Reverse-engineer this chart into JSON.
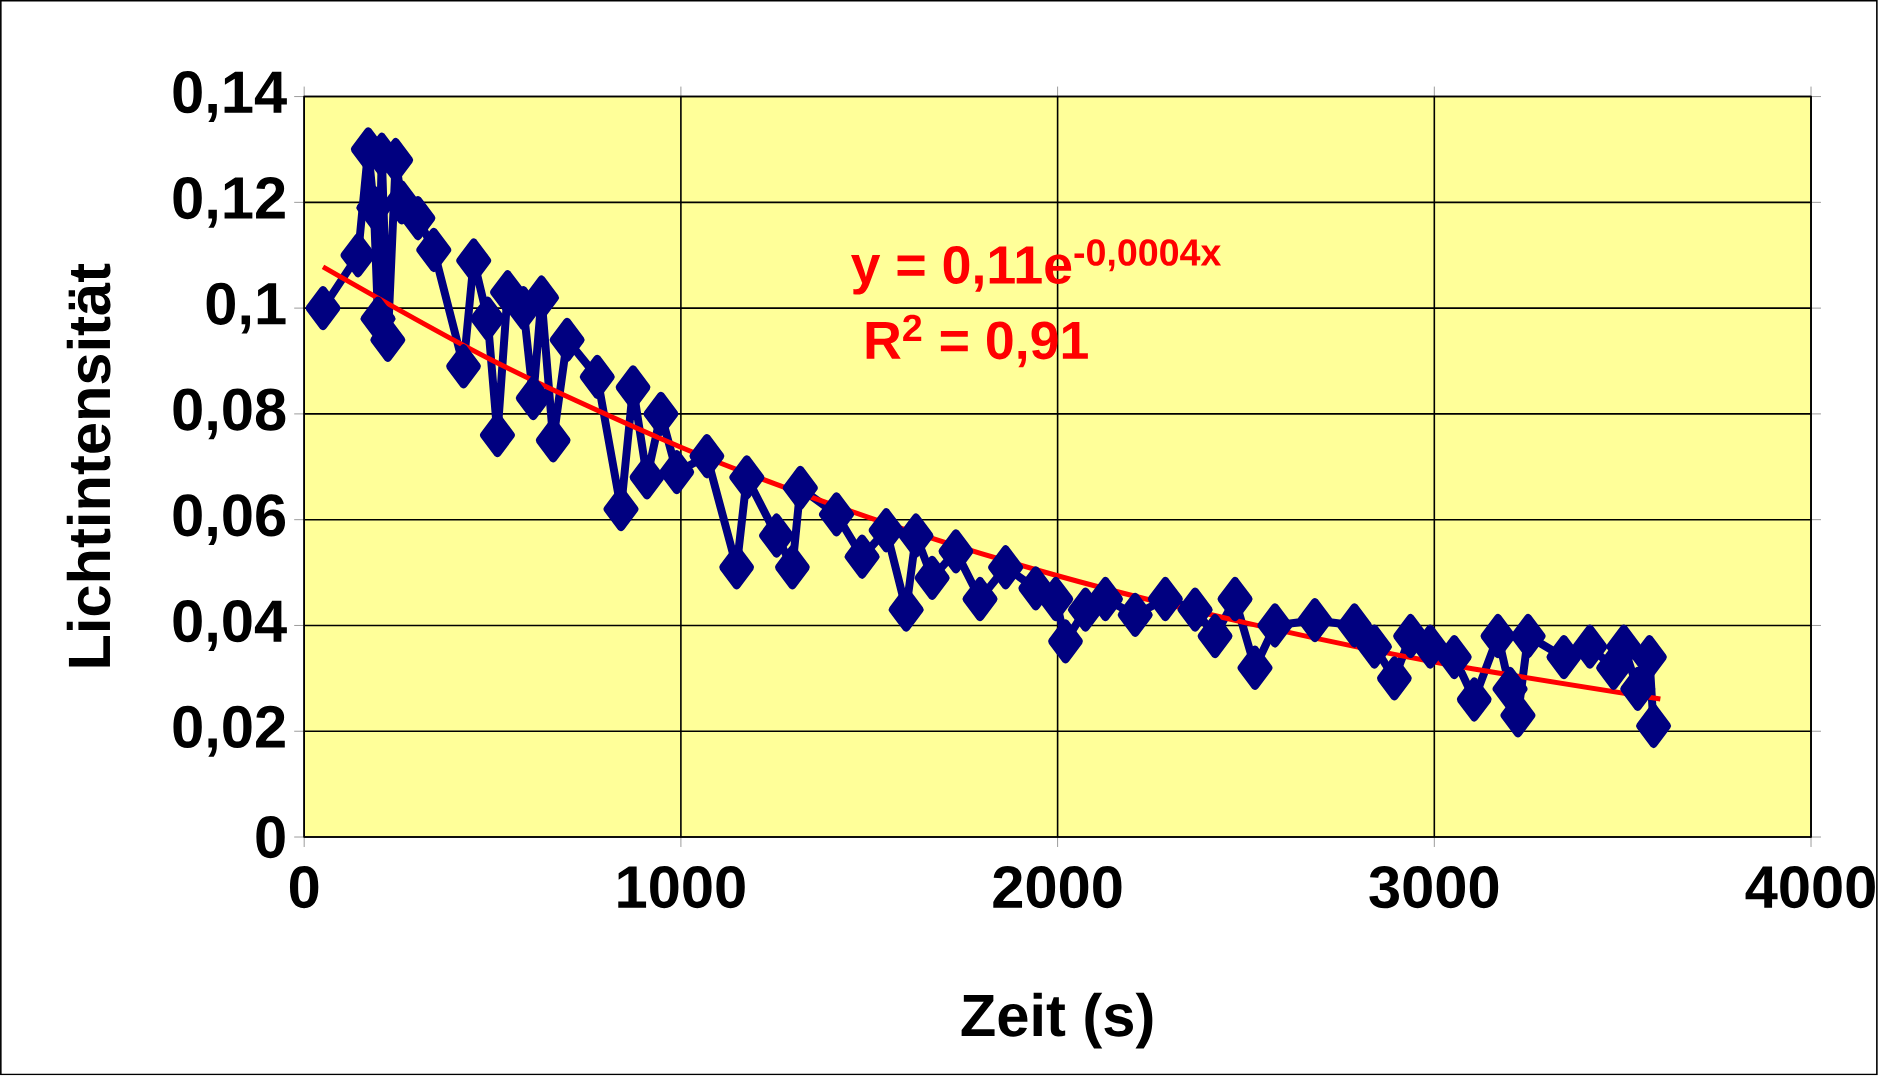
{
  "chart_data": {
    "type": "line",
    "xlabel": "Zeit (s)",
    "ylabel": "Lichtintensität",
    "xlim": [
      0,
      4000
    ],
    "xticks": [
      0,
      1000,
      2000,
      3000,
      4000
    ],
    "ylim": [
      0,
      0.14
    ],
    "yticks": [
      0,
      {
        "value": 0.02,
        "label": "0,02"
      },
      {
        "value": 0.04,
        "label": "0,04"
      },
      {
        "value": 0.06,
        "label": "0,06"
      },
      {
        "value": 0.08,
        "label": "0,08"
      },
      {
        "value": 0.1,
        "label": "0,1"
      },
      {
        "value": 0.12,
        "label": "0,12"
      },
      {
        "value": 0.14,
        "label": "0,14"
      }
    ],
    "grid": true,
    "legend": false,
    "marker": "diamond",
    "line_style": "solid",
    "annotations": [
      "y = 0,11e$^{-0,0004x}$",
      "R$^{2}$ = 0,91"
    ],
    "series": [
      {
        "color": "#000080",
        "x": [
          50,
          143,
          170,
          185,
          196,
          206,
          222,
          243,
          259,
          302,
          344,
          423,
          450,
          487,
          513,
          540,
          582,
          608,
          630,
          661,
          698,
          778,
          841,
          873,
          910,
          947,
          989,
          1069,
          1148,
          1175,
          1254,
          1296,
          1317,
          1413,
          1481,
          1545,
          1598,
          1624,
          1667,
          1730,
          1794,
          1862,
          1942,
          1995,
          2021,
          2074,
          2127,
          2206,
          2286,
          2365,
          2418,
          2471,
          2524,
          2577,
          2683,
          2788,
          2841,
          2894,
          2937,
          2989,
          3053,
          3106,
          3169,
          3201,
          3222,
          3249,
          3344,
          3413,
          3476,
          3503,
          3540,
          3571,
          3582
        ],
        "values": [
          0.1,
          0.11,
          0.13,
          0.119,
          0.098,
          0.129,
          0.094,
          0.128,
          0.12,
          0.117,
          0.111,
          0.089,
          0.109,
          0.098,
          0.076,
          0.103,
          0.1,
          0.083,
          0.102,
          0.075,
          0.094,
          0.087,
          0.062,
          0.085,
          0.068,
          0.08,
          0.069,
          0.072,
          0.051,
          0.068,
          0.057,
          0.051,
          0.066,
          0.061,
          0.053,
          0.058,
          0.043,
          0.057,
          0.049,
          0.054,
          0.045,
          0.051,
          0.047,
          0.045,
          0.037,
          0.043,
          0.045,
          0.042,
          0.045,
          0.043,
          0.038,
          0.045,
          0.032,
          0.04,
          0.041,
          0.04,
          0.036,
          0.03,
          0.038,
          0.036,
          0.034,
          0.026,
          0.038,
          0.028,
          0.023,
          0.038,
          0.034,
          0.036,
          0.032,
          0.036,
          0.028,
          0.034,
          0.021
        ]
      },
      {
        "color": "#ff0000",
        "marker": "none",
        "x": [
          50,
          500,
          1000,
          1500,
          2000,
          2500,
          3000,
          3600
        ],
        "values": [
          0.1078,
          0.0901,
          0.0737,
          0.0604,
          0.0494,
          0.0405,
          0.0331,
          0.0261
        ]
      }
    ]
  }
}
